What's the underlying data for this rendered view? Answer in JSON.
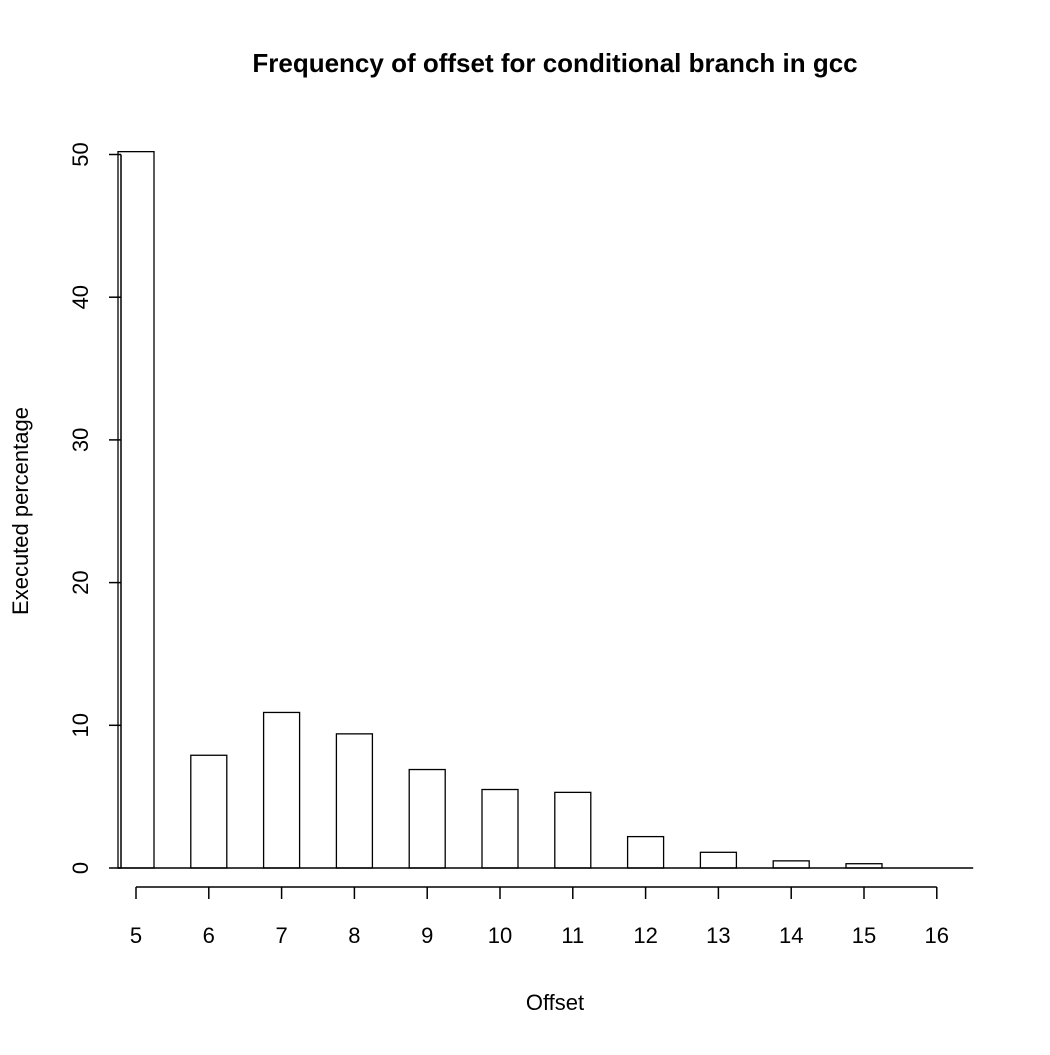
{
  "chart_data": {
    "type": "bar",
    "title": "Frequency of offset for conditional branch in gcc",
    "xlabel": "Offset",
    "ylabel": "Executed percentage",
    "x_ticks": [
      "5",
      "6",
      "7",
      "8",
      "9",
      "10",
      "11",
      "12",
      "13",
      "14",
      "15",
      "16"
    ],
    "y_ticks": [
      0,
      10,
      20,
      30,
      40,
      50
    ],
    "ylim": [
      0,
      50
    ],
    "grid": false,
    "legend": "none",
    "categories": [
      "5",
      "6",
      "7",
      "8",
      "9",
      "10",
      "11",
      "12",
      "13",
      "14",
      "15",
      "16"
    ],
    "values": [
      50.2,
      7.9,
      10.9,
      9.4,
      6.9,
      5.5,
      5.3,
      2.2,
      1.1,
      0.5,
      0.3,
      0.0
    ],
    "gap_values": [
      0.0,
      0.0,
      0.0,
      0.0,
      0.0,
      0.0,
      0.0,
      0.0,
      0.0,
      0.0,
      0.0
    ],
    "bar_fill": "#ffffff",
    "bar_stroke": "#000000"
  }
}
